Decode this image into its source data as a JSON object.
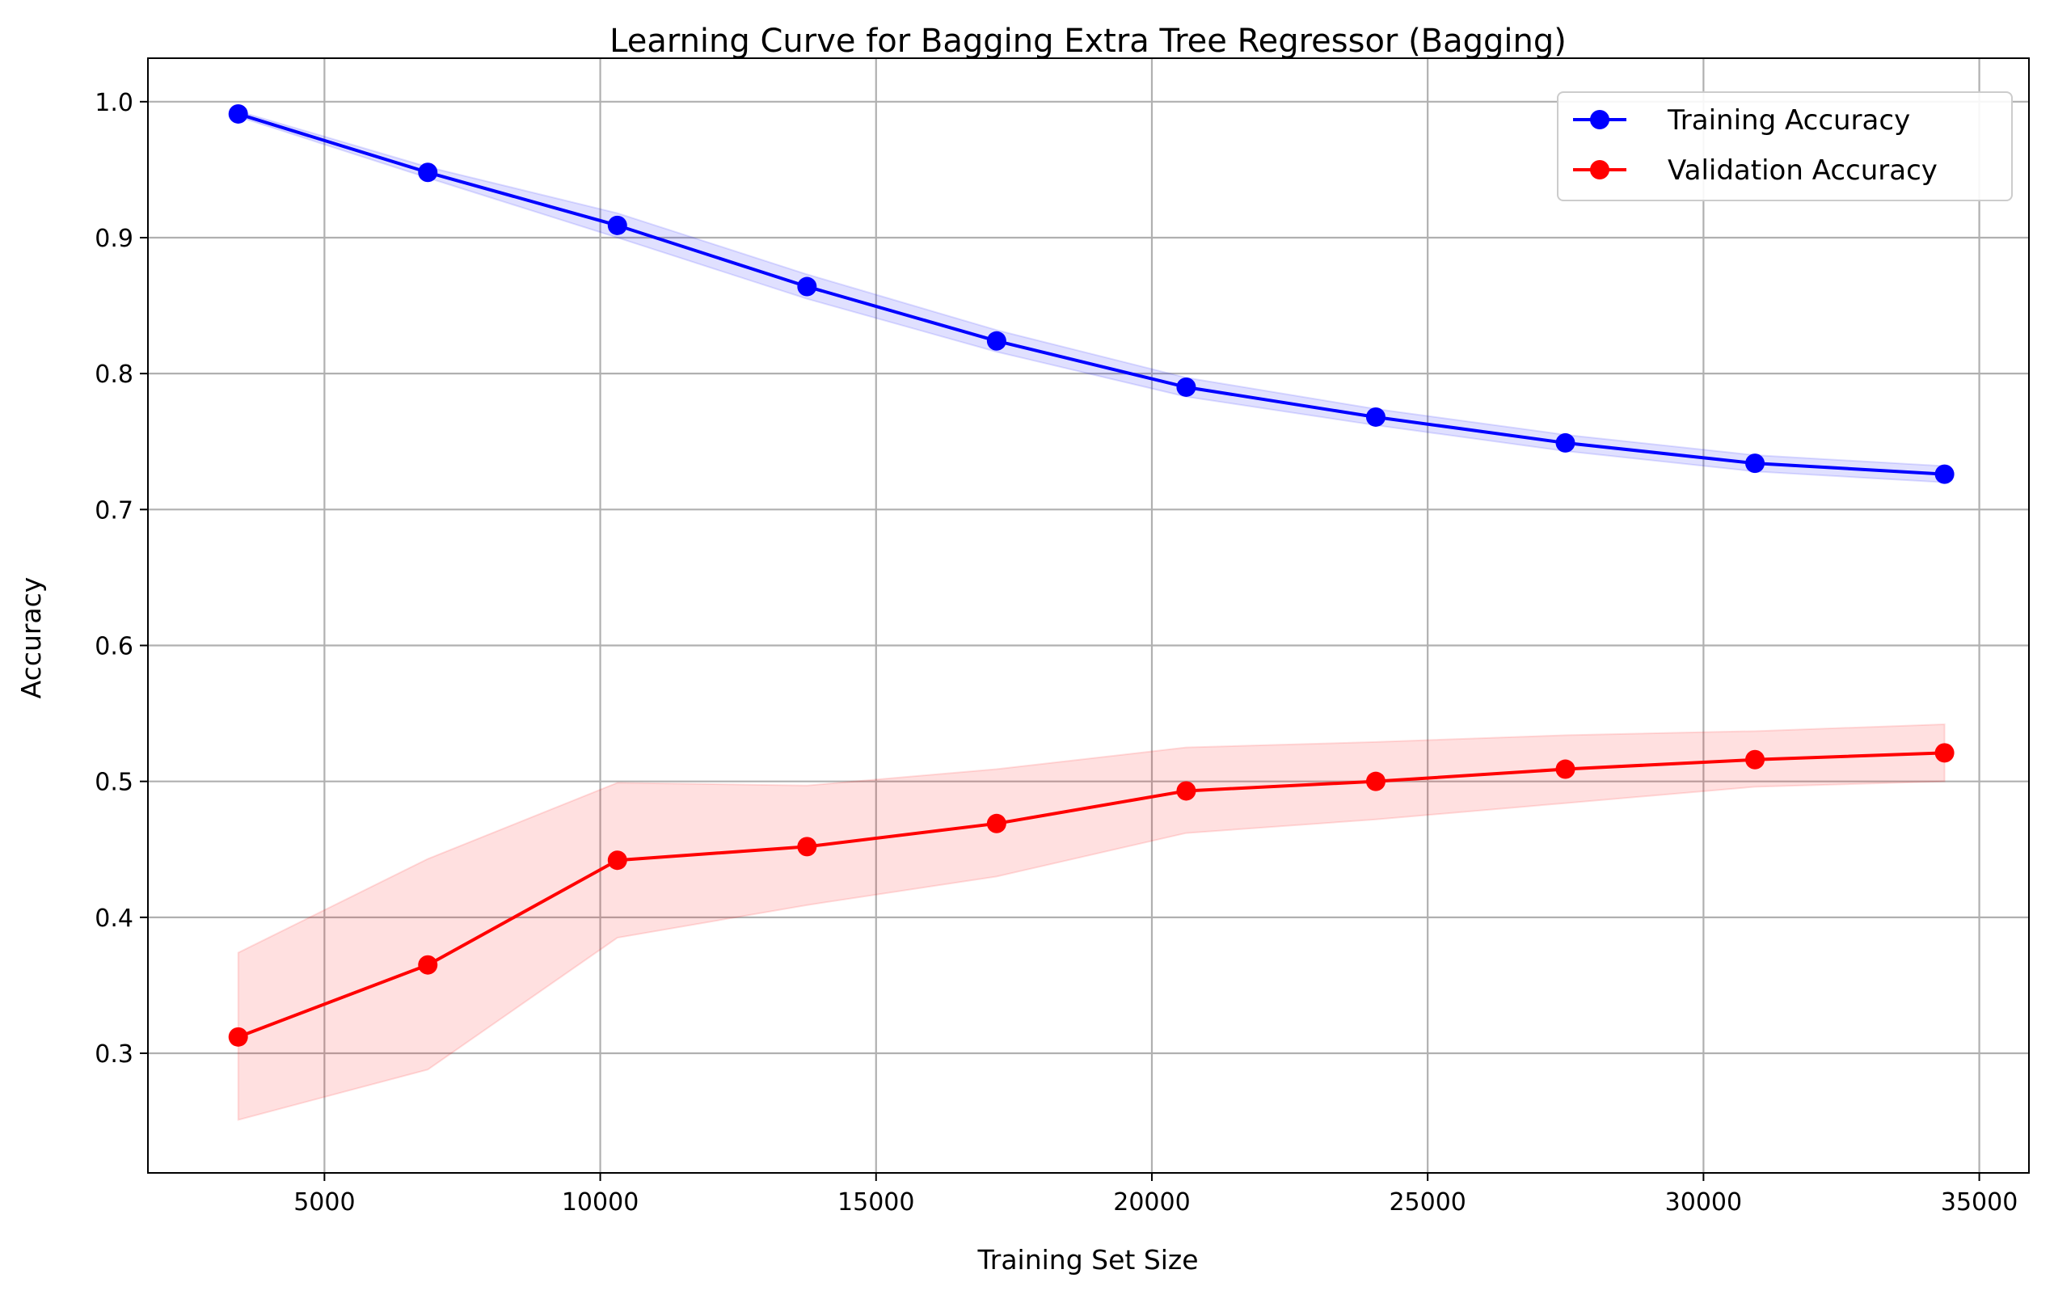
{
  "chart_data": {
    "type": "line",
    "title": "Learning Curve for Bagging Extra Tree Regressor (Bagging)",
    "xlabel": "Training Set Size",
    "ylabel": "Accuracy",
    "xlim": [
      1800,
      35900
    ],
    "ylim": [
      0.212,
      1.032
    ],
    "x_ticks": [
      5000,
      10000,
      15000,
      20000,
      25000,
      30000,
      35000
    ],
    "y_ticks": [
      0.3,
      0.4,
      0.5,
      0.6,
      0.7,
      0.8,
      0.9,
      1.0
    ],
    "grid": true,
    "legend_position": "top-right",
    "x": [
      3437,
      6874,
      10311,
      13748,
      17185,
      20622,
      24059,
      27496,
      30933,
      34370
    ],
    "series": [
      {
        "name": "Training Accuracy",
        "color": "#0000ff",
        "band_color": "#0000ff",
        "values": [
          0.991,
          0.948,
          0.909,
          0.864,
          0.824,
          0.79,
          0.768,
          0.749,
          0.734,
          0.726
        ],
        "lower": [
          0.989,
          0.944,
          0.9,
          0.855,
          0.816,
          0.783,
          0.762,
          0.743,
          0.728,
          0.72
        ],
        "upper": [
          0.993,
          0.952,
          0.918,
          0.873,
          0.832,
          0.797,
          0.774,
          0.755,
          0.74,
          0.732
        ]
      },
      {
        "name": "Validation Accuracy",
        "color": "#ff0000",
        "band_color": "#ff0000",
        "values": [
          0.312,
          0.365,
          0.442,
          0.452,
          0.469,
          0.493,
          0.5,
          0.509,
          0.516,
          0.521
        ],
        "lower": [
          0.251,
          0.288,
          0.385,
          0.409,
          0.43,
          0.462,
          0.472,
          0.484,
          0.496,
          0.5
        ],
        "upper": [
          0.374,
          0.443,
          0.499,
          0.497,
          0.509,
          0.525,
          0.529,
          0.534,
          0.537,
          0.542
        ]
      }
    ]
  }
}
